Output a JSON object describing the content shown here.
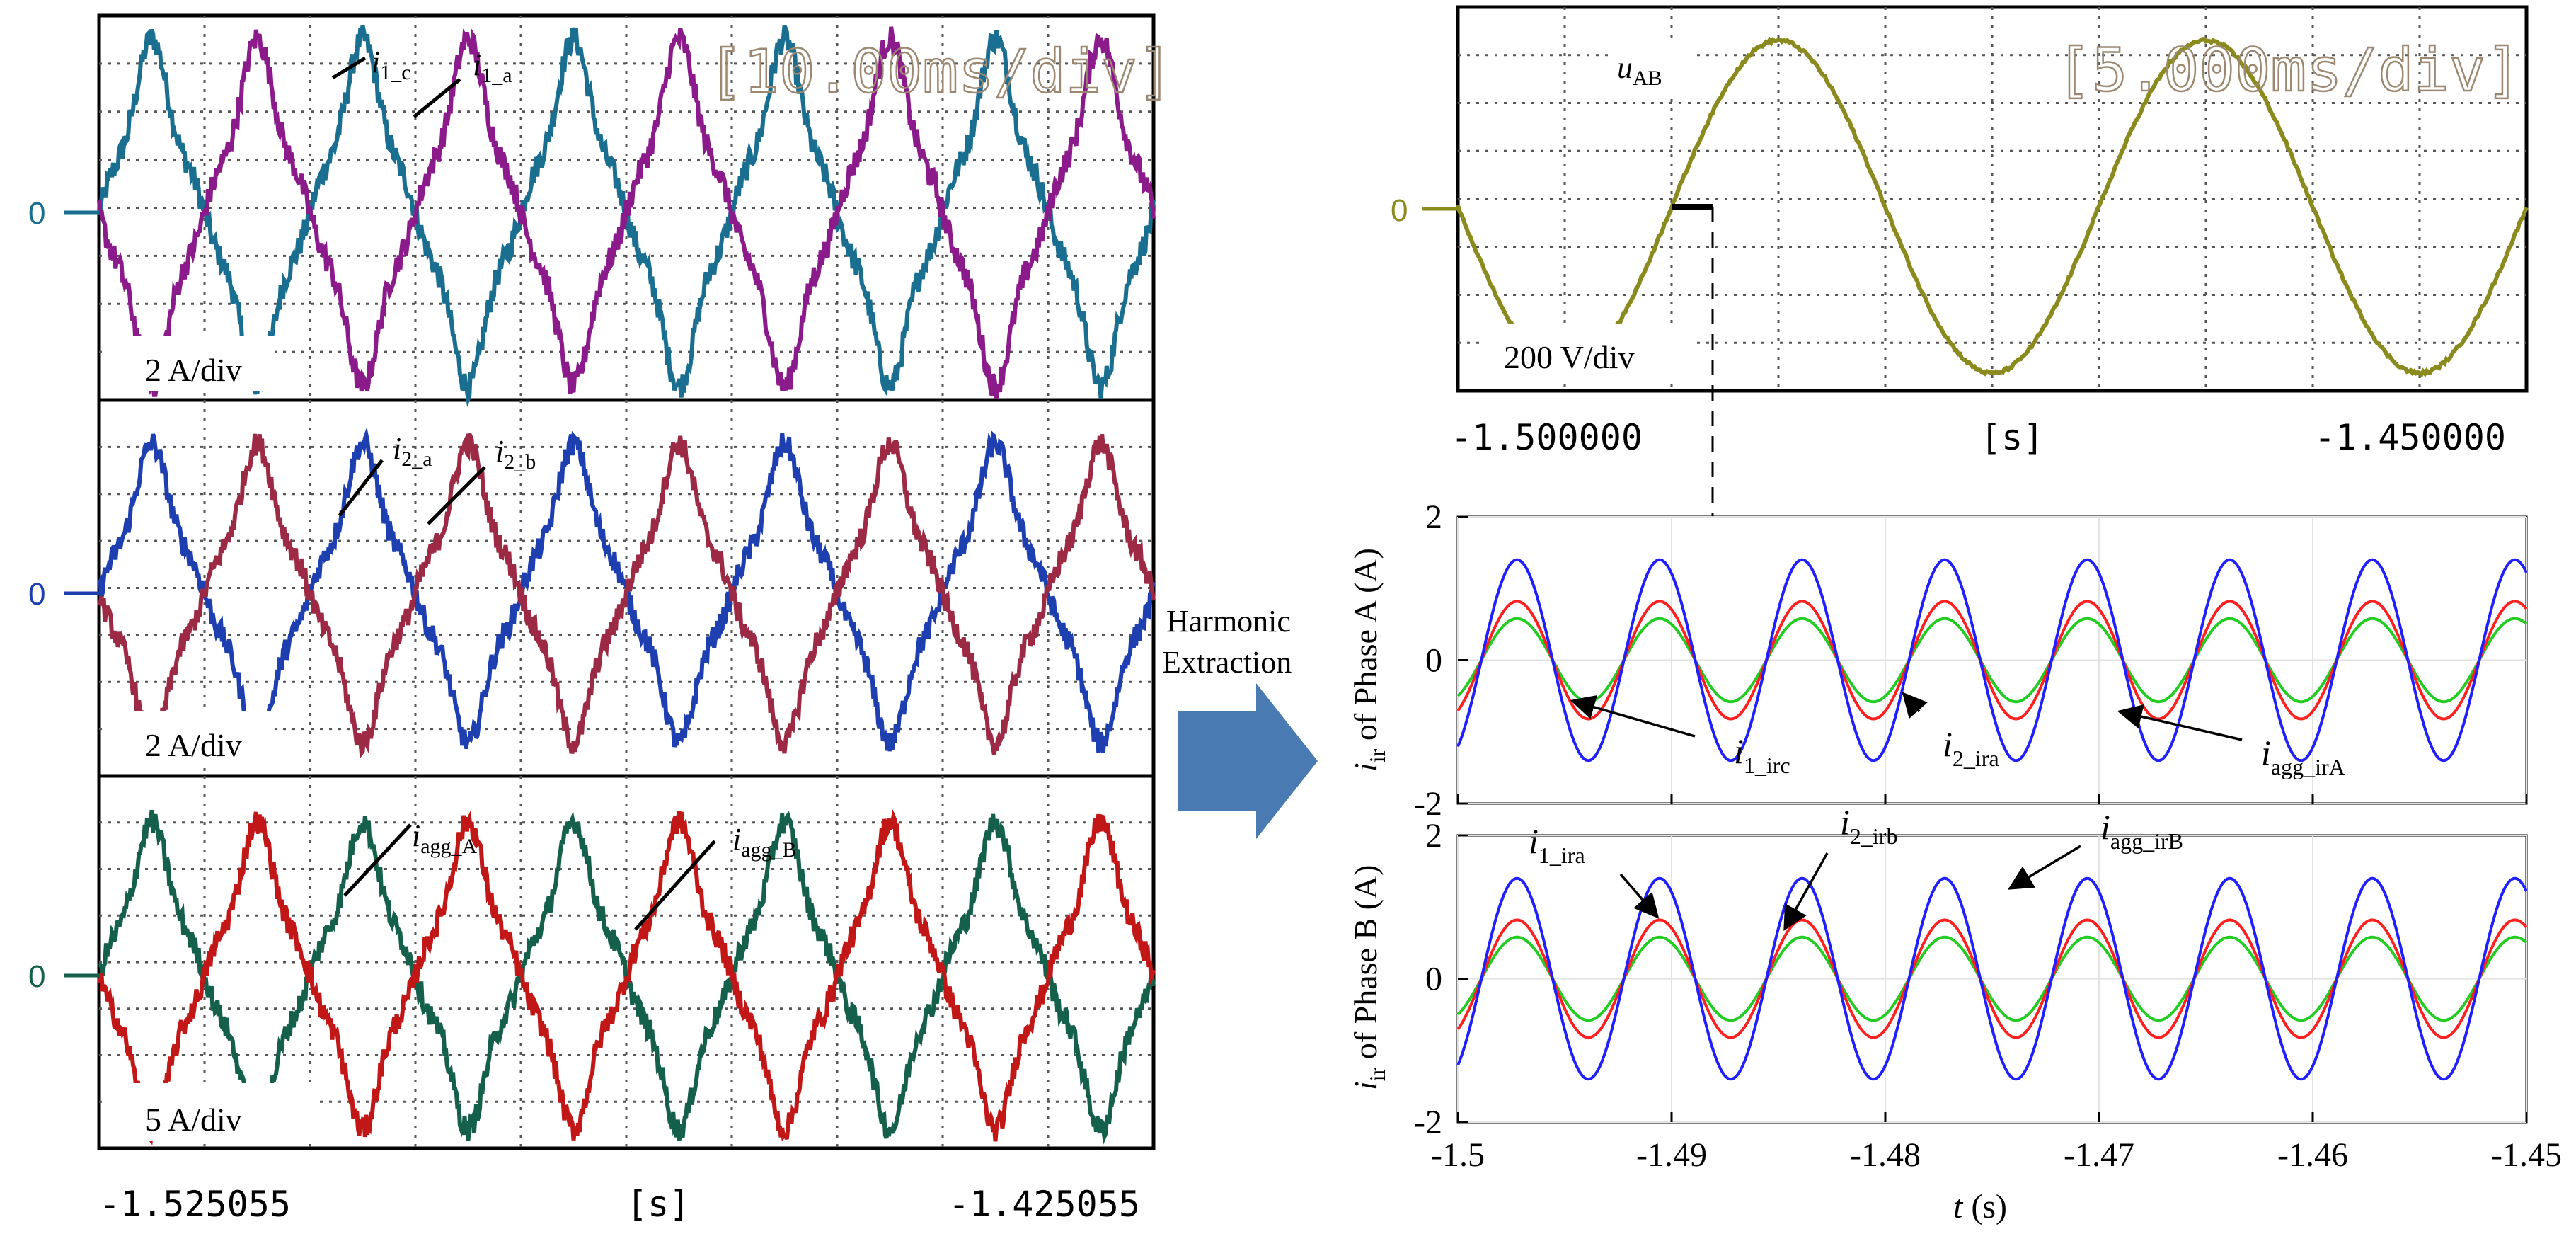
{
  "chart_data": [
    {
      "type": "line",
      "id": "scope-1",
      "scale_label": "[10.00ms/div]",
      "amplitude_label": "2 A/div",
      "zero_label": "0",
      "xlim": [
        -1.525055,
        -1.425055
      ],
      "x_ticks": [
        "-1.525055",
        "[s]",
        "-1.425055"
      ],
      "series": [
        {
          "name": "i1_c",
          "base": "i",
          "sub": "1_c",
          "color": "#1a6e8f",
          "amplitude": 0.75,
          "period": 0.02,
          "phase": 0
        },
        {
          "name": "i1_a",
          "base": "i",
          "sub": "1_a",
          "color": "#8b1a8b",
          "amplitude": 0.75,
          "period": 0.02,
          "phase": 180
        }
      ]
    },
    {
      "type": "line",
      "id": "scope-2",
      "amplitude_label": "2 A/div",
      "zero_label": "0",
      "xlim": [
        -1.525055,
        -1.425055
      ],
      "series": [
        {
          "name": "i2_a",
          "base": "i",
          "sub": "2_a",
          "color": "#1e3fb0",
          "amplitude": 0.7,
          "period": 0.02,
          "phase": 0
        },
        {
          "name": "i2_b",
          "base": "i",
          "sub": "2_b",
          "color": "#9c2a45",
          "amplitude": 0.7,
          "period": 0.02,
          "phase": 180
        }
      ]
    },
    {
      "type": "line",
      "id": "scope-3",
      "amplitude_label": "5 A/div",
      "zero_label": "0",
      "xlim": [
        -1.525055,
        -1.425055
      ],
      "series": [
        {
          "name": "iagg_A",
          "base": "i",
          "sub": "agg_A",
          "color": "#14604a",
          "amplitude": 0.72,
          "period": 0.02,
          "phase": 0
        },
        {
          "name": "iagg_B",
          "base": "i",
          "sub": "agg_B",
          "color": "#c21717",
          "amplitude": 0.72,
          "period": 0.02,
          "phase": 180
        }
      ]
    },
    {
      "type": "line",
      "id": "scope-uab",
      "scale_label": "[5.000ms/div]",
      "amplitude_label": "200 V/div",
      "zero_label": "0",
      "xlim": [
        -1.5,
        -1.45
      ],
      "x_ticks": [
        "-1.500000",
        "[s]",
        "-1.450000"
      ],
      "series": [
        {
          "name": "uAB",
          "base": "u",
          "sub": "AB",
          "color": "#8a8a1e",
          "amplitude": 1.0,
          "period": 0.02,
          "zero_cross": -1.49
        }
      ]
    },
    {
      "type": "line",
      "id": "phase-a",
      "ylabel": {
        "base": "i",
        "sub": "ir",
        "rest": " of Phase A (A)"
      },
      "xlim": [
        -1.5,
        -1.45
      ],
      "ylim": [
        -2,
        2
      ],
      "y_ticks": [
        -2,
        0,
        2
      ],
      "x_ticks": [
        -1.5,
        -1.49,
        -1.48,
        -1.47,
        -1.46,
        -1.45
      ],
      "series": [
        {
          "name": "i1_irc",
          "color": "#22cc22",
          "amplitude": 0.58,
          "period": 0.00667,
          "phase_shift": 0.0011
        },
        {
          "name": "i2_ira",
          "color": "#ff2020",
          "amplitude": 0.82,
          "period": 0.00667,
          "phase_shift": 0.0011
        },
        {
          "name": "iagg_irA",
          "color": "#2020ff",
          "amplitude": 1.4,
          "period": 0.00667,
          "phase_shift": 0.0011
        }
      ],
      "annotations": [
        {
          "base": "i",
          "sub": "1_irc"
        },
        {
          "base": "i",
          "sub": "2_ira"
        },
        {
          "base": "i",
          "sub": "agg_irA"
        }
      ]
    },
    {
      "type": "line",
      "id": "phase-b",
      "ylabel": {
        "base": "i",
        "sub": "ir",
        "rest": " of Phase B (A)"
      },
      "xlabel": {
        "base": "t",
        "rest": " (s)"
      },
      "xlim": [
        -1.5,
        -1.45
      ],
      "ylim": [
        -2,
        2
      ],
      "y_ticks": [
        -2,
        0,
        2
      ],
      "x_ticks": [
        -1.5,
        -1.49,
        -1.48,
        -1.47,
        -1.46,
        -1.45
      ],
      "series": [
        {
          "name": "i1_ira",
          "color": "#22cc22",
          "amplitude": 0.58,
          "period": 0.00667,
          "phase_shift": 0.0011
        },
        {
          "name": "i2_irb",
          "color": "#ff2020",
          "amplitude": 0.82,
          "period": 0.00667,
          "phase_shift": 0.0011
        },
        {
          "name": "iagg_irB",
          "color": "#2020ff",
          "amplitude": 1.4,
          "period": 0.00667,
          "phase_shift": 0.0011
        }
      ],
      "annotations": [
        {
          "base": "i",
          "sub": "1_ira"
        },
        {
          "base": "i",
          "sub": "2_irb"
        },
        {
          "base": "i",
          "sub": "agg_irB"
        }
      ]
    }
  ],
  "arrow": {
    "line1": "Harmonic",
    "line2": "Extraction",
    "color": "#4a7ab2"
  }
}
